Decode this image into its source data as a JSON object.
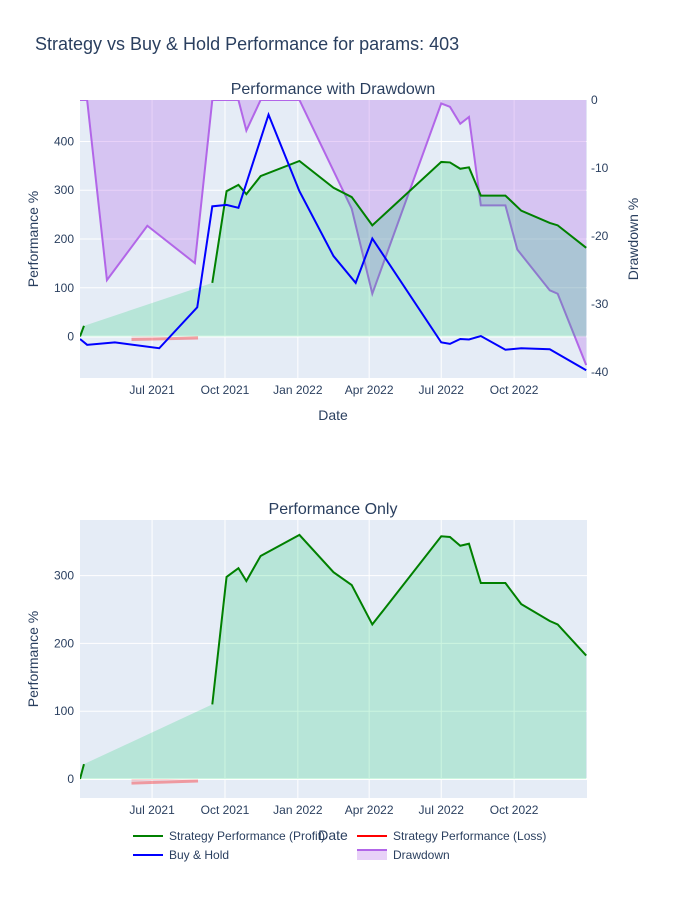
{
  "title": "Strategy vs Buy & Hold Performance for params: 403",
  "chart_data": [
    {
      "type": "line",
      "title": "Performance with Drawdown",
      "xlabel": "Date",
      "ylabel": "Performance %",
      "y2label": "Drawdown %",
      "xlim": [
        "2021-04-01",
        "2023-01-01"
      ],
      "ylim": [
        -85,
        485
      ],
      "y2lim": [
        -40.9,
        0
      ],
      "x_ticks": [
        "2021-07-01",
        "2021-10-01",
        "2022-01-01",
        "2022-04-01",
        "2022-07-01",
        "2022-10-01"
      ],
      "x_tick_labels": [
        "Jul 2021",
        "Oct 2021",
        "Jan 2022",
        "Apr 2022",
        "Jul 2022",
        "Oct 2022"
      ],
      "y_ticks": [
        0,
        100,
        200,
        300,
        400
      ],
      "y2_ticks": [
        0,
        -10,
        -20,
        -30,
        -40
      ],
      "grid": true,
      "series": [
        {
          "name": "Strategy Performance (Profit)",
          "color": "#008000",
          "fill": "rgba(0,204,102,0.2)",
          "segments": [
            [
              [
                "2021-04-01",
                0
              ],
              [
                "2021-04-06",
                22
              ]
            ],
            [
              [
                "2021-09-15",
                110
              ],
              [
                "2021-10-03",
                298
              ],
              [
                "2021-10-18",
                311
              ],
              [
                "2021-10-28",
                292
              ],
              [
                "2021-11-15",
                329
              ],
              [
                "2022-01-03",
                360
              ],
              [
                "2022-02-15",
                305
              ],
              [
                "2022-03-10",
                286
              ],
              [
                "2022-04-05",
                228
              ],
              [
                "2022-07-01",
                358
              ],
              [
                "2022-07-12",
                357
              ],
              [
                "2022-07-25",
                344
              ],
              [
                "2022-08-05",
                347
              ],
              [
                "2022-08-20",
                289
              ],
              [
                "2022-09-20",
                289
              ],
              [
                "2022-10-10",
                258
              ],
              [
                "2022-11-15",
                233
              ],
              [
                "2022-11-25",
                228
              ],
              [
                "2022-12-31",
                182
              ]
            ]
          ]
        },
        {
          "name": "Strategy Performance (Loss)",
          "color": "#ff0000",
          "points": [
            [
              "2021-06-05",
              -6
            ],
            [
              "2021-08-28",
              -3
            ]
          ]
        },
        {
          "name": "Buy & Hold",
          "color": "#0000ff",
          "points": [
            [
              "2021-04-01",
              -5
            ],
            [
              "2021-04-10",
              -17
            ],
            [
              "2021-05-15",
              -12
            ],
            [
              "2021-07-10",
              -24
            ],
            [
              "2021-08-27",
              60
            ],
            [
              "2021-09-15",
              267
            ],
            [
              "2021-10-03",
              270
            ],
            [
              "2021-10-18",
              264
            ],
            [
              "2021-11-25",
              455
            ],
            [
              "2022-01-03",
              298
            ],
            [
              "2022-02-15",
              165
            ],
            [
              "2022-03-15",
              110
            ],
            [
              "2022-04-05",
              201
            ],
            [
              "2022-07-01",
              -12
            ],
            [
              "2022-07-12",
              -15
            ],
            [
              "2022-07-25",
              -5
            ],
            [
              "2022-08-05",
              -6
            ],
            [
              "2022-08-20",
              1
            ],
            [
              "2022-09-20",
              -27
            ],
            [
              "2022-10-10",
              -24
            ],
            [
              "2022-11-15",
              -26
            ],
            [
              "2022-12-31",
              -69
            ]
          ]
        },
        {
          "name": "Drawdown",
          "axis": "y2",
          "color": "#b266e8",
          "fill": "rgba(178,102,232,0.3)",
          "points": [
            [
              "2021-04-01",
              0
            ],
            [
              "2021-04-10",
              0
            ],
            [
              "2021-05-05",
              -26.5
            ],
            [
              "2021-06-25",
              -18.5
            ],
            [
              "2021-08-24",
              -24
            ],
            [
              "2021-09-15",
              0
            ],
            [
              "2021-10-18",
              0
            ],
            [
              "2021-10-28",
              -4.5
            ],
            [
              "2021-11-15",
              0
            ],
            [
              "2022-01-03",
              0
            ],
            [
              "2022-03-10",
              -16
            ],
            [
              "2022-04-05",
              -28.5
            ],
            [
              "2022-07-01",
              -0.5
            ],
            [
              "2022-07-12",
              -1
            ],
            [
              "2022-07-25",
              -3.5
            ],
            [
              "2022-08-05",
              -2.5
            ],
            [
              "2022-08-20",
              -15.5
            ],
            [
              "2022-09-20",
              -15.5
            ],
            [
              "2022-10-05",
              -22
            ],
            [
              "2022-11-15",
              -28
            ],
            [
              "2022-11-25",
              -28.5
            ],
            [
              "2022-12-31",
              -39
            ]
          ]
        }
      ]
    },
    {
      "type": "line",
      "title": "Performance Only",
      "xlabel": "Date",
      "ylabel": "Performance %",
      "xlim": [
        "2021-04-01",
        "2023-01-01"
      ],
      "ylim": [
        -28,
        382
      ],
      "x_ticks": [
        "2021-07-01",
        "2021-10-01",
        "2022-01-01",
        "2022-04-01",
        "2022-07-01",
        "2022-10-01"
      ],
      "x_tick_labels": [
        "Jul 2021",
        "Oct 2021",
        "Jan 2022",
        "Apr 2022",
        "Jul 2022",
        "Oct 2022"
      ],
      "y_ticks": [
        0,
        100,
        200,
        300
      ],
      "grid": true,
      "series": [
        {
          "name": "Strategy Performance (Profit)",
          "color": "#008000",
          "fill": "rgba(0,204,102,0.2)",
          "segments": [
            [
              [
                "2021-04-01",
                0
              ],
              [
                "2021-04-06",
                22
              ]
            ],
            [
              [
                "2021-09-15",
                110
              ],
              [
                "2021-10-03",
                298
              ],
              [
                "2021-10-18",
                311
              ],
              [
                "2021-10-28",
                292
              ],
              [
                "2021-11-15",
                329
              ],
              [
                "2022-01-03",
                360
              ],
              [
                "2022-02-15",
                305
              ],
              [
                "2022-03-10",
                286
              ],
              [
                "2022-04-05",
                228
              ],
              [
                "2022-07-01",
                358
              ],
              [
                "2022-07-12",
                357
              ],
              [
                "2022-07-25",
                344
              ],
              [
                "2022-08-05",
                347
              ],
              [
                "2022-08-20",
                289
              ],
              [
                "2022-09-20",
                289
              ],
              [
                "2022-10-10",
                258
              ],
              [
                "2022-11-15",
                233
              ],
              [
                "2022-11-25",
                228
              ],
              [
                "2022-12-31",
                182
              ]
            ]
          ]
        },
        {
          "name": "Strategy Performance (Loss)",
          "color": "#ff0000",
          "points": [
            [
              "2021-06-05",
              -6
            ],
            [
              "2021-08-28",
              -3
            ]
          ]
        }
      ]
    }
  ],
  "legend": {
    "placement": "bottom-center",
    "items": [
      {
        "label": "Strategy Performance (Profit)",
        "color": "#008000",
        "kind": "line"
      },
      {
        "label": "Strategy Performance (Loss)",
        "color": "#ff0000",
        "kind": "line"
      },
      {
        "label": "Buy & Hold",
        "color": "#0000ff",
        "kind": "line"
      },
      {
        "label": "Drawdown",
        "color": "#b266e8",
        "kind": "fill"
      }
    ]
  },
  "colors": {
    "plot_background": "#e5ecf6",
    "grid": "#ffffff",
    "text": "#2a3f5f"
  }
}
